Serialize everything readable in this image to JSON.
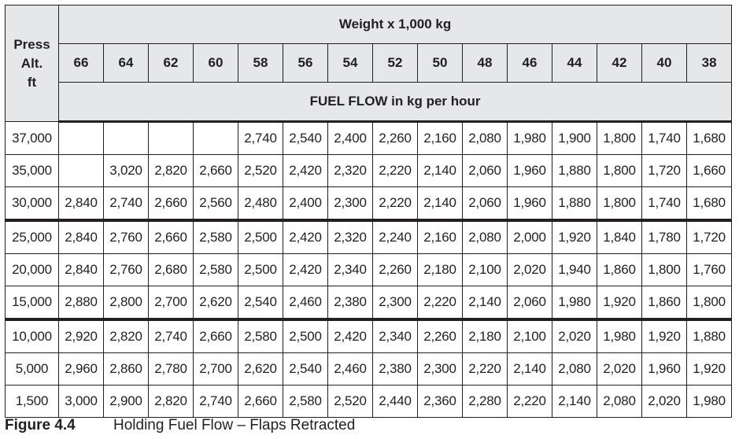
{
  "header": {
    "alt_label": [
      "Press",
      "Alt.",
      "ft"
    ],
    "weight_title": "Weight x 1,000 kg",
    "weights": [
      "66",
      "64",
      "62",
      "60",
      "58",
      "56",
      "54",
      "52",
      "50",
      "48",
      "46",
      "44",
      "42",
      "40",
      "38"
    ],
    "flow_title": "FUEL FLOW in kg per hour"
  },
  "rows": [
    {
      "alt": "37,000",
      "cells": [
        "",
        "",
        "",
        "",
        "2,740",
        "2,540",
        "2,400",
        "2,260",
        "2,160",
        "2,080",
        "1,980",
        "1,900",
        "1,800",
        "1,740",
        "1,680"
      ]
    },
    {
      "alt": "35,000",
      "cells": [
        "",
        "3,020",
        "2,820",
        "2,660",
        "2,520",
        "2,420",
        "2,320",
        "2,220",
        "2,140",
        "2,060",
        "1,960",
        "1,880",
        "1,800",
        "1,720",
        "1,660"
      ]
    },
    {
      "alt": "30,000",
      "cells": [
        "2,840",
        "2,740",
        "2,660",
        "2,560",
        "2,480",
        "2,400",
        "2,300",
        "2,220",
        "2,140",
        "2,060",
        "1,960",
        "1,880",
        "1,800",
        "1,740",
        "1,680"
      ]
    },
    {
      "alt": "25,000",
      "cells": [
        "2,840",
        "2,760",
        "2,660",
        "2,580",
        "2,500",
        "2,420",
        "2,320",
        "2,240",
        "2,160",
        "2,080",
        "2,000",
        "1,920",
        "1,840",
        "1,780",
        "1,720"
      ]
    },
    {
      "alt": "20,000",
      "cells": [
        "2,840",
        "2,760",
        "2,680",
        "2,580",
        "2,500",
        "2,420",
        "2,340",
        "2,260",
        "2,180",
        "2,100",
        "2,020",
        "1,940",
        "1,860",
        "1,800",
        "1,760"
      ]
    },
    {
      "alt": "15,000",
      "cells": [
        "2,880",
        "2,800",
        "2,700",
        "2,620",
        "2,540",
        "2,460",
        "2,380",
        "2,300",
        "2,220",
        "2,140",
        "2,060",
        "1,980",
        "1,920",
        "1,860",
        "1,800"
      ]
    },
    {
      "alt": "10,000",
      "cells": [
        "2,920",
        "2,820",
        "2,740",
        "2,660",
        "2,580",
        "2,500",
        "2,420",
        "2,340",
        "2,260",
        "2,180",
        "2,100",
        "2,020",
        "1,980",
        "1,920",
        "1,880"
      ]
    },
    {
      "alt": "5,000",
      "cells": [
        "2,960",
        "2,860",
        "2,780",
        "2,700",
        "2,620",
        "2,540",
        "2,460",
        "2,380",
        "2,300",
        "2,220",
        "2,140",
        "2,080",
        "2,020",
        "1,960",
        "1,920"
      ]
    },
    {
      "alt": "1,500",
      "cells": [
        "3,000",
        "2,900",
        "2,820",
        "2,740",
        "2,660",
        "2,580",
        "2,520",
        "2,440",
        "2,360",
        "2,280",
        "2,220",
        "2,140",
        "2,080",
        "2,020",
        "1,980"
      ]
    }
  ],
  "caption": {
    "number": "Figure 4.4",
    "title": "Holding Fuel Flow – Flaps Retracted"
  }
}
